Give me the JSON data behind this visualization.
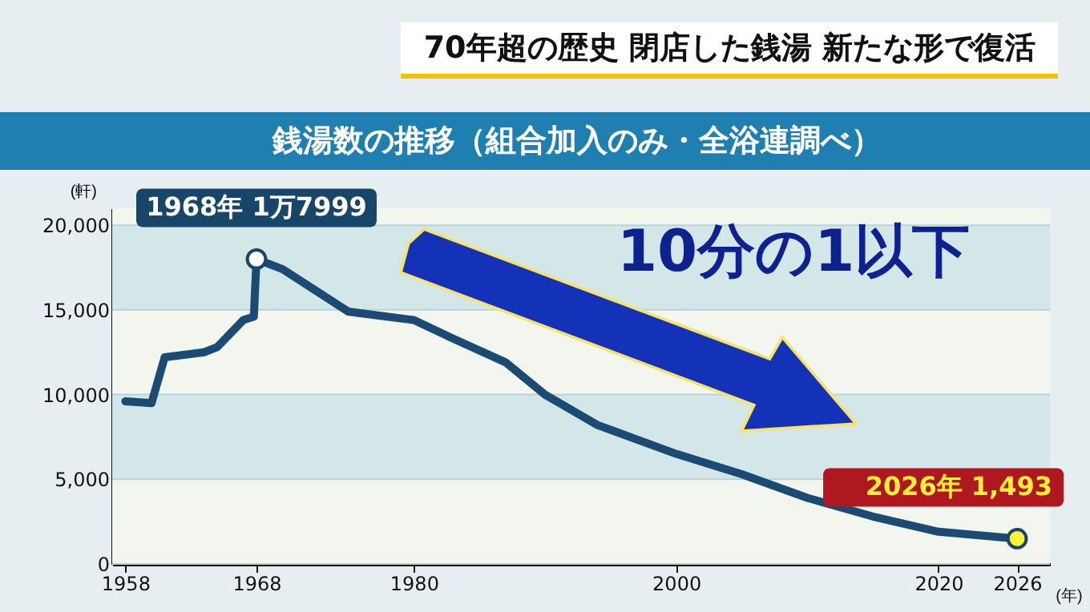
{
  "chart_data": {
    "type": "line",
    "title": "銭湯数の推移（組合加入のみ・全浴連調べ）",
    "xlabel": "(年)",
    "ylabel": "(軒)",
    "annotations": [
      "70年超の歴史 閉店した銭湯 新たな形で復活",
      "10分の1以下",
      {
        "text": "1968年 1万7999",
        "x": 1968,
        "y": 17999
      },
      {
        "text": "2026年 1,493",
        "x": 2026,
        "y": 1493
      }
    ],
    "x": [
      1958,
      1960,
      1961,
      1964,
      1965,
      1966,
      1967,
      1967.8,
      1968,
      1970,
      1972,
      1975,
      1977,
      1980,
      1983,
      1987,
      1990,
      1994,
      2000,
      2005,
      2010,
      2015,
      2020,
      2026
    ],
    "series": [
      {
        "color": "#1b4a72",
        "values": [
          9600,
          9500,
          12200,
          12500,
          12800,
          13600,
          14400,
          14600,
          17999,
          17400,
          16400,
          14900,
          14700,
          14400,
          13300,
          11900,
          10000,
          8200,
          6500,
          5300,
          3900,
          2800,
          1900,
          1493
        ]
      }
    ],
    "xlim": [
      1957,
      2028.5
    ],
    "xticks": [
      1958,
      1968,
      1980,
      2000,
      2020,
      2026
    ],
    "ylim": [
      0,
      21000
    ],
    "yticks": [
      0,
      {
        "value": 5000,
        "label": "5,000"
      },
      {
        "value": 10000,
        "label": "10,000"
      },
      {
        "value": 15000,
        "label": "15,000"
      },
      {
        "value": 20000,
        "label": "20,000"
      }
    ],
    "grid": "y",
    "marker": "none",
    "line_style": "solid"
  }
}
